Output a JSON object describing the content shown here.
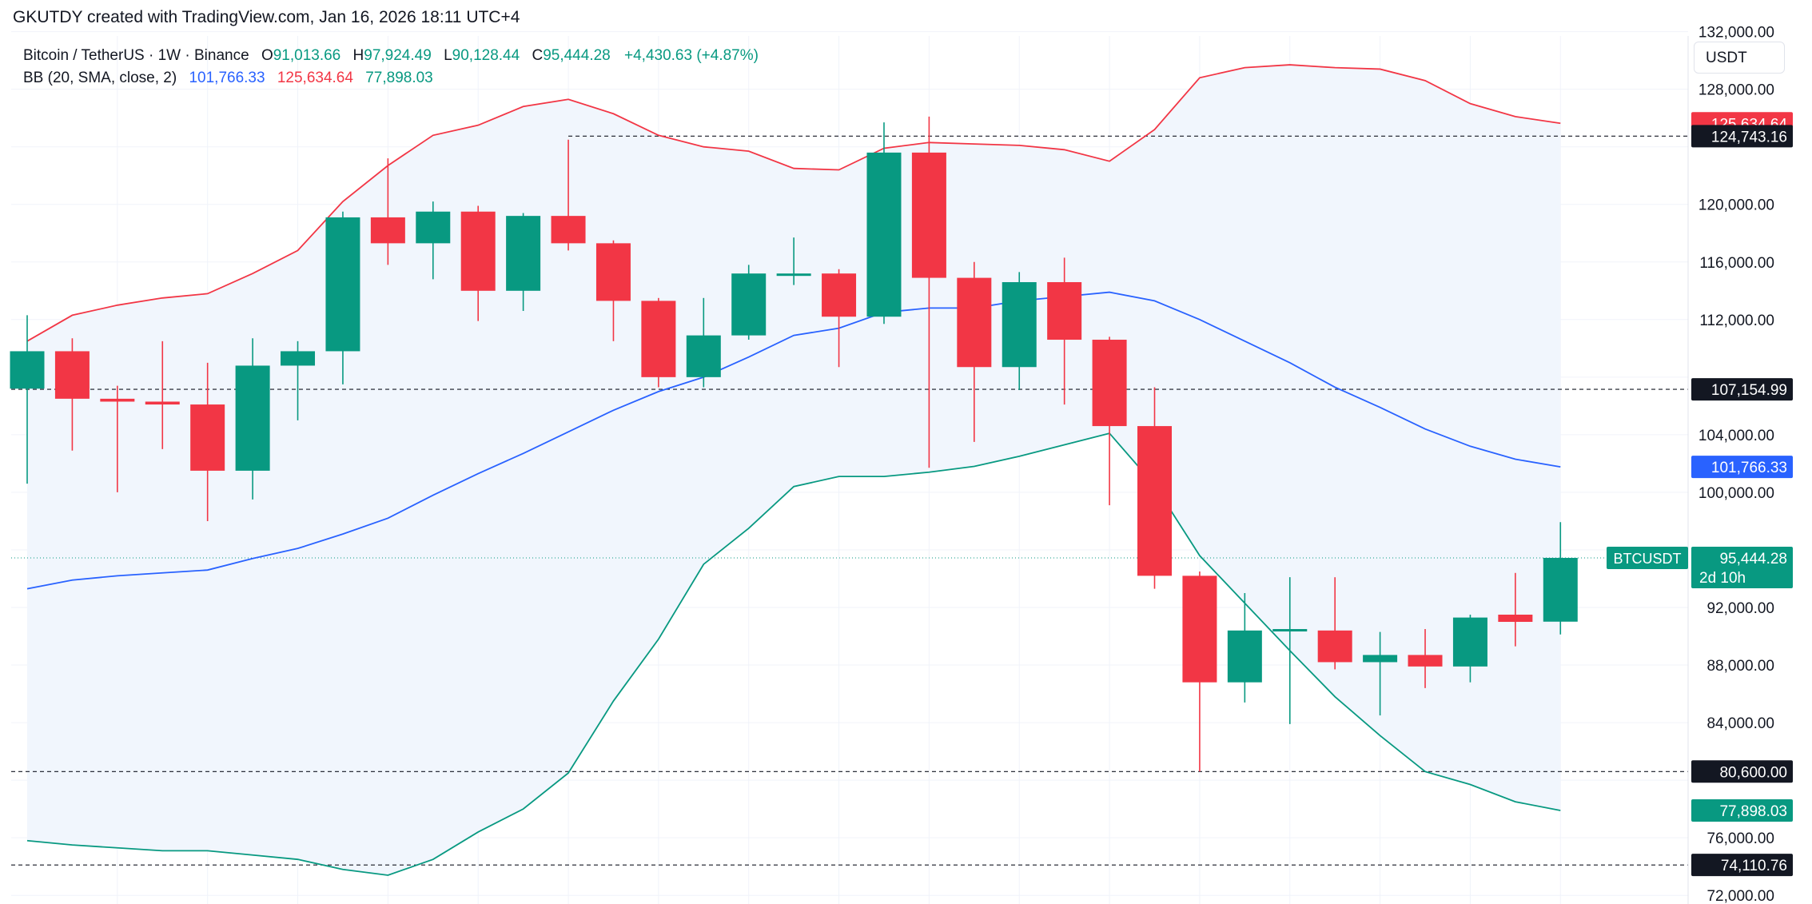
{
  "header": {
    "text": "GKUTDY created with TradingView.com, Jan 16, 2026 18:11 UTC+4"
  },
  "legend": {
    "symbol": "Bitcoin / TetherUS · 1W · Binance",
    "o_label": "O",
    "o_value": "91,013.66",
    "h_label": "H",
    "h_value": "97,924.49",
    "l_label": "L",
    "l_value": "90,128.44",
    "c_label": "C",
    "c_value": "95,444.28",
    "change": "+4,430.63 (+4.87%)",
    "bb_label": "BB (20, SMA, close, 2)",
    "bb_basis": "101,766.33",
    "bb_upper": "125,634.64",
    "bb_lower": "77,898.03"
  },
  "currency": "USDT",
  "colors": {
    "up": "#089981",
    "down": "#f23645",
    "basis": "#2962ff",
    "upper": "#f23645",
    "lower": "#089981",
    "band_fill": "#f1f6fd",
    "grid": "#f0f3fa",
    "hline": "#131722"
  },
  "chart_data": {
    "type": "candlestick",
    "y_axis_ticks": [
      "132,000.00",
      "128,000.00",
      "120,000.00",
      "116,000.00",
      "112,000.00",
      "104,000.00",
      "100,000.00",
      "92,000.00",
      "88,000.00",
      "84,000.00",
      "76,000.00",
      "72,000.00"
    ],
    "ylim": [
      71400,
      134200
    ],
    "grid": true,
    "candles": [
      {
        "o": 107200,
        "h": 112300,
        "l": 100600,
        "c": 109800
      },
      {
        "o": 109800,
        "h": 110700,
        "l": 102900,
        "c": 106500
      },
      {
        "o": 106500,
        "h": 107400,
        "l": 100000,
        "c": 106300
      },
      {
        "o": 106300,
        "h": 110500,
        "l": 103000,
        "c": 106100
      },
      {
        "o": 106100,
        "h": 109000,
        "l": 98000,
        "c": 101500
      },
      {
        "o": 101500,
        "h": 110700,
        "l": 99500,
        "c": 108800
      },
      {
        "o": 108800,
        "h": 110500,
        "l": 105000,
        "c": 109800
      },
      {
        "o": 109800,
        "h": 119500,
        "l": 107500,
        "c": 119100
      },
      {
        "o": 119100,
        "h": 123200,
        "l": 115800,
        "c": 117300
      },
      {
        "o": 117300,
        "h": 120200,
        "l": 114800,
        "c": 119500
      },
      {
        "o": 119500,
        "h": 119900,
        "l": 111900,
        "c": 114000
      },
      {
        "o": 114000,
        "h": 119400,
        "l": 112600,
        "c": 119200
      },
      {
        "o": 119200,
        "h": 124500,
        "l": 116800,
        "c": 117300
      },
      {
        "o": 117300,
        "h": 117500,
        "l": 110500,
        "c": 113300
      },
      {
        "o": 113300,
        "h": 113500,
        "l": 107300,
        "c": 108000
      },
      {
        "o": 108000,
        "h": 113500,
        "l": 107300,
        "c": 110900
      },
      {
        "o": 110900,
        "h": 115800,
        "l": 110600,
        "c": 115200
      },
      {
        "o": 115200,
        "h": 117700,
        "l": 114400,
        "c": 115200
      },
      {
        "o": 115200,
        "h": 115500,
        "l": 108700,
        "c": 112200
      },
      {
        "o": 112200,
        "h": 125700,
        "l": 111700,
        "c": 123600
      },
      {
        "o": 123600,
        "h": 126100,
        "l": 101700,
        "c": 114900
      },
      {
        "o": 114900,
        "h": 116000,
        "l": 103500,
        "c": 108700
      },
      {
        "o": 108700,
        "h": 115300,
        "l": 107100,
        "c": 114600
      },
      {
        "o": 114600,
        "h": 116300,
        "l": 106100,
        "c": 110600
      },
      {
        "o": 110600,
        "h": 110800,
        "l": 99100,
        "c": 104600
      },
      {
        "o": 104600,
        "h": 107300,
        "l": 93300,
        "c": 94200
      },
      {
        "o": 94200,
        "h": 94500,
        "l": 80600,
        "c": 86800
      },
      {
        "o": 86800,
        "h": 93000,
        "l": 85400,
        "c": 90400
      },
      {
        "o": 90400,
        "h": 94100,
        "l": 83900,
        "c": 90500
      },
      {
        "o": 90400,
        "h": 94100,
        "l": 87700,
        "c": 88200
      },
      {
        "o": 88200,
        "h": 90300,
        "l": 84500,
        "c": 88700
      },
      {
        "o": 88700,
        "h": 90500,
        "l": 86400,
        "c": 87900
      },
      {
        "o": 87900,
        "h": 91500,
        "l": 86800,
        "c": 91300
      },
      {
        "o": 91500,
        "h": 94400,
        "l": 89300,
        "c": 91000
      },
      {
        "o": 91013.66,
        "h": 97924.49,
        "l": 90128.44,
        "c": 95444.28
      }
    ],
    "bb_upper": [
      110500,
      112300,
      113000,
      113500,
      113800,
      115200,
      116800,
      120200,
      122700,
      124800,
      125500,
      126800,
      127300,
      126300,
      124800,
      124000,
      123700,
      122500,
      122400,
      123900,
      124300,
      124200,
      124100,
      123800,
      123000,
      125200,
      128800,
      129500,
      129700,
      129500,
      129400,
      128600,
      127000,
      126100,
      125634.64
    ],
    "bb_basis": [
      93300,
      93900,
      94200,
      94400,
      94600,
      95400,
      96100,
      97100,
      98200,
      99800,
      101300,
      102700,
      104200,
      105700,
      107000,
      108000,
      109400,
      110900,
      111400,
      112500,
      112800,
      112800,
      113300,
      113600,
      113900,
      113300,
      112000,
      110500,
      109000,
      107300,
      105900,
      104400,
      103200,
      102300,
      101766.33
    ],
    "bb_lower": [
      75800,
      75500,
      75300,
      75100,
      75100,
      74800,
      74500,
      73800,
      73400,
      74500,
      76400,
      78000,
      80500,
      85500,
      89800,
      95000,
      97500,
      100400,
      101100,
      101100,
      101400,
      101800,
      102500,
      103300,
      104100,
      100500,
      95600,
      92300,
      89000,
      85800,
      83100,
      80600,
      79700,
      78500,
      77898.03
    ],
    "horizontal_lines": [
      124743.16,
      107154.99,
      80600.0,
      74110.76
    ],
    "price_labels": [
      {
        "text": "125,634.64",
        "value": 125634.64,
        "color": "#f23645"
      },
      {
        "text": "124,743.16",
        "value": 124743.16,
        "color": "#131722"
      },
      {
        "text": "107,154.99",
        "value": 107154.99,
        "color": "#131722"
      },
      {
        "text": "101,766.33",
        "value": 101766.33,
        "color": "#2962ff"
      },
      {
        "text": "80,600.00",
        "value": 80600.0,
        "color": "#131722"
      },
      {
        "text": "77,898.03",
        "value": 77898.03,
        "color": "#089981"
      },
      {
        "text": "74,110.76",
        "value": 74110.76,
        "color": "#131722"
      }
    ],
    "current_price_label": {
      "text": "95,444.28",
      "sub": "2d 10h",
      "value": 95444.28,
      "symbol_tag": "BTCUSDT"
    }
  }
}
